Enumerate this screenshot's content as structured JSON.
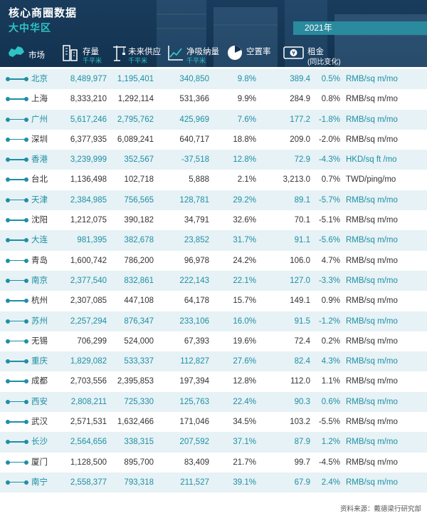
{
  "header": {
    "title": "核心商圈数据",
    "subtitle": "大中华区",
    "year": "2021年"
  },
  "columns": {
    "market": {
      "label": "市场",
      "icon": "map-icon"
    },
    "stock": {
      "label": "存量",
      "sub": "千平米",
      "icon": "buildings-icon"
    },
    "supply": {
      "label": "未来供应",
      "sub": "千平米",
      "icon": "crane-icon"
    },
    "absorption": {
      "label": "净吸纳量",
      "sub": "千平米",
      "icon": "line-chart-icon"
    },
    "vacancy": {
      "label": "空置率",
      "icon": "pie-chart-icon"
    },
    "rent": {
      "label": "租金",
      "sub": "(同比变化)",
      "icon": "money-icon"
    }
  },
  "rows": [
    {
      "market": "北京",
      "stock": "8,489,977",
      "supply": "1,195,401",
      "absorption": "340,850",
      "vacancy": "9.8%",
      "rent": "389.4",
      "change": "0.5%",
      "unit": "RMB/sq m/mo"
    },
    {
      "market": "上海",
      "stock": "8,333,210",
      "supply": "1,292,114",
      "absorption": "531,366",
      "vacancy": "9.9%",
      "rent": "284.9",
      "change": "0.8%",
      "unit": "RMB/sq m/mo"
    },
    {
      "market": "广州",
      "stock": "5,617,246",
      "supply": "2,795,762",
      "absorption": "425,969",
      "vacancy": "7.6%",
      "rent": "177.2",
      "change": "-1.8%",
      "unit": "RMB/sq m/mo"
    },
    {
      "market": "深圳",
      "stock": "6,377,935",
      "supply": "6,089,241",
      "absorption": "640,717",
      "vacancy": "18.8%",
      "rent": "209.0",
      "change": "-2.0%",
      "unit": "RMB/sq m/mo"
    },
    {
      "market": "香港",
      "stock": "3,239,999",
      "supply": "352,567",
      "absorption": "-37,518",
      "vacancy": "12.8%",
      "rent": "72.9",
      "change": "-4.3%",
      "unit": "HKD/sq ft /mo"
    },
    {
      "market": "台北",
      "stock": "1,136,498",
      "supply": "102,718",
      "absorption": "5,888",
      "vacancy": "2.1%",
      "rent": "3,213.0",
      "change": "0.7%",
      "unit": "TWD/ping/mo"
    },
    {
      "market": "天津",
      "stock": "2,384,985",
      "supply": "756,565",
      "absorption": "128,781",
      "vacancy": "29.2%",
      "rent": "89.1",
      "change": "-5.7%",
      "unit": "RMB/sq m/mo"
    },
    {
      "market": "沈阳",
      "stock": "1,212,075",
      "supply": "390,182",
      "absorption": "34,791",
      "vacancy": "32.6%",
      "rent": "70.1",
      "change": "-5.1%",
      "unit": "RMB/sq m/mo"
    },
    {
      "market": "大连",
      "stock": "981,395",
      "supply": "382,678",
      "absorption": "23,852",
      "vacancy": "31.7%",
      "rent": "91.1",
      "change": "-5.6%",
      "unit": "RMB/sq m/mo"
    },
    {
      "market": "青岛",
      "stock": "1,600,742",
      "supply": "786,200",
      "absorption": "96,978",
      "vacancy": "24.2%",
      "rent": "106.0",
      "change": "4.7%",
      "unit": "RMB/sq m/mo"
    },
    {
      "market": "南京",
      "stock": "2,377,540",
      "supply": "832,861",
      "absorption": "222,143",
      "vacancy": "22.1%",
      "rent": "127.0",
      "change": "-3.3%",
      "unit": "RMB/sq m/mo"
    },
    {
      "market": "杭州",
      "stock": "2,307,085",
      "supply": "447,108",
      "absorption": "64,178",
      "vacancy": "15.7%",
      "rent": "149.1",
      "change": "0.9%",
      "unit": "RMB/sq m/mo"
    },
    {
      "market": "苏州",
      "stock": "2,257,294",
      "supply": "876,347",
      "absorption": "233,106",
      "vacancy": "16.0%",
      "rent": "91.5",
      "change": "-1.2%",
      "unit": "RMB/sq m/mo"
    },
    {
      "market": "无锡",
      "stock": "706,299",
      "supply": "524,000",
      "absorption": "67,393",
      "vacancy": "19.6%",
      "rent": "72.4",
      "change": "0.2%",
      "unit": "RMB/sq m/mo"
    },
    {
      "market": "重庆",
      "stock": "1,829,082",
      "supply": "533,337",
      "absorption": "112,827",
      "vacancy": "27.6%",
      "rent": "82.4",
      "change": "4.3%",
      "unit": "RMB/sq m/mo"
    },
    {
      "market": "成都",
      "stock": "2,703,556",
      "supply": "2,395,853",
      "absorption": "197,394",
      "vacancy": "12.8%",
      "rent": "112.0",
      "change": "1.1%",
      "unit": "RMB/sq m/mo"
    },
    {
      "market": "西安",
      "stock": "2,808,211",
      "supply": "725,330",
      "absorption": "125,763",
      "vacancy": "22.4%",
      "rent": "90.3",
      "change": "0.6%",
      "unit": "RMB/sq m/mo"
    },
    {
      "market": "武汉",
      "stock": "2,571,531",
      "supply": "1,632,466",
      "absorption": "171,046",
      "vacancy": "34.5%",
      "rent": "103.2",
      "change": "-5.5%",
      "unit": "RMB/sq m/mo"
    },
    {
      "market": "长沙",
      "stock": "2,564,656",
      "supply": "338,315",
      "absorption": "207,592",
      "vacancy": "37.1%",
      "rent": "87.9",
      "change": "1.2%",
      "unit": "RMB/sq m/mo"
    },
    {
      "market": "厦门",
      "stock": "1,128,500",
      "supply": "895,700",
      "absorption": "83,409",
      "vacancy": "21.7%",
      "rent": "99.7",
      "change": "-4.5%",
      "unit": "RMB/sq m/mo"
    },
    {
      "market": "南宁",
      "stock": "2,558,377",
      "supply": "793,318",
      "absorption": "211,527",
      "vacancy": "39.1%",
      "rent": "67.9",
      "change": "2.4%",
      "unit": "RMB/sq m/mo"
    }
  ],
  "footer": {
    "source": "资料来源：戴德梁行研究部"
  },
  "colors": {
    "header_bg": "#1a3c5c",
    "accent": "#2ec4c6",
    "row_odd_bg": "#e6f2f5",
    "row_odd_text": "#1e8fa6"
  }
}
